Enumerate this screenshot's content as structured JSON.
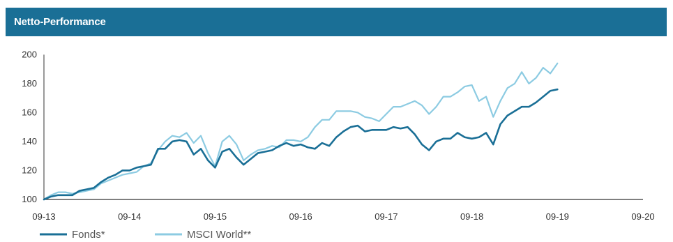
{
  "header": {
    "title": "Netto-Performance"
  },
  "chart_data": {
    "type": "line",
    "title": "Netto-Performance",
    "xlabel": "",
    "ylabel": "",
    "x_ticks": [
      "09-13",
      "09-14",
      "09-15",
      "09-16",
      "09-17",
      "09-18",
      "09-19",
      "09-20"
    ],
    "y_ticks": [
      100,
      120,
      140,
      160,
      180,
      200
    ],
    "xlim": [
      0,
      84
    ],
    "ylim": [
      100,
      205
    ],
    "grid": false,
    "legend_position": "bottom-left",
    "series": [
      {
        "name": "Fonds*",
        "color": "#1a6f96",
        "x": [
          0,
          1,
          2,
          3,
          4,
          5,
          6,
          7,
          8,
          9,
          10,
          11,
          12,
          13,
          14,
          15,
          16,
          17,
          18,
          19,
          20,
          21,
          22,
          23,
          24,
          25,
          26,
          27,
          28,
          29,
          30,
          31,
          32,
          33,
          34,
          35,
          36,
          37,
          38,
          39,
          40,
          41,
          42,
          43,
          44,
          45,
          46,
          47,
          48,
          49,
          50,
          51,
          52,
          53,
          54,
          55,
          56,
          57,
          58,
          59,
          60,
          61,
          62,
          63,
          64,
          65,
          66,
          67,
          68,
          69,
          70,
          71,
          72
        ],
        "values": [
          100,
          102,
          103,
          103,
          103,
          106,
          107,
          108,
          112,
          115,
          117,
          120,
          120,
          122,
          123,
          124,
          135,
          135,
          140,
          141,
          140,
          131,
          135,
          127,
          122,
          133,
          135,
          129,
          124,
          128,
          132,
          133,
          134,
          137,
          139,
          137,
          138,
          136,
          135,
          139,
          137,
          143,
          147,
          150,
          151,
          147,
          148,
          148,
          148,
          150,
          149,
          150,
          145,
          138,
          134,
          140,
          142,
          142,
          146,
          143,
          142,
          143,
          146,
          138,
          152,
          158,
          161,
          164,
          164,
          167,
          171,
          175,
          176
        ]
      },
      {
        "name": "MSCI World**",
        "color": "#8ccbe2",
        "x": [
          0,
          1,
          2,
          3,
          4,
          5,
          6,
          7,
          8,
          9,
          10,
          11,
          12,
          13,
          14,
          15,
          16,
          17,
          18,
          19,
          20,
          21,
          22,
          23,
          24,
          25,
          26,
          27,
          28,
          29,
          30,
          31,
          32,
          33,
          34,
          35,
          36,
          37,
          38,
          39,
          40,
          41,
          42,
          43,
          44,
          45,
          46,
          47,
          48,
          49,
          50,
          51,
          52,
          53,
          54,
          55,
          56,
          57,
          58,
          59,
          60,
          61,
          62,
          63,
          64,
          65,
          66,
          67,
          68,
          69,
          70,
          71,
          72
        ],
        "values": [
          100,
          103,
          105,
          105,
          104,
          105,
          106,
          107,
          111,
          113,
          115,
          117,
          118,
          119,
          123,
          125,
          134,
          140,
          144,
          143,
          146,
          139,
          144,
          132,
          123,
          140,
          144,
          138,
          127,
          131,
          134,
          135,
          137,
          136,
          141,
          141,
          140,
          143,
          150,
          155,
          155,
          161,
          161,
          161,
          160,
          157,
          156,
          154,
          159,
          164,
          164,
          166,
          168,
          165,
          159,
          164,
          171,
          171,
          174,
          178,
          179,
          168,
          171,
          157,
          168,
          177,
          180,
          188,
          180,
          184,
          191,
          187,
          194
        ]
      }
    ]
  }
}
